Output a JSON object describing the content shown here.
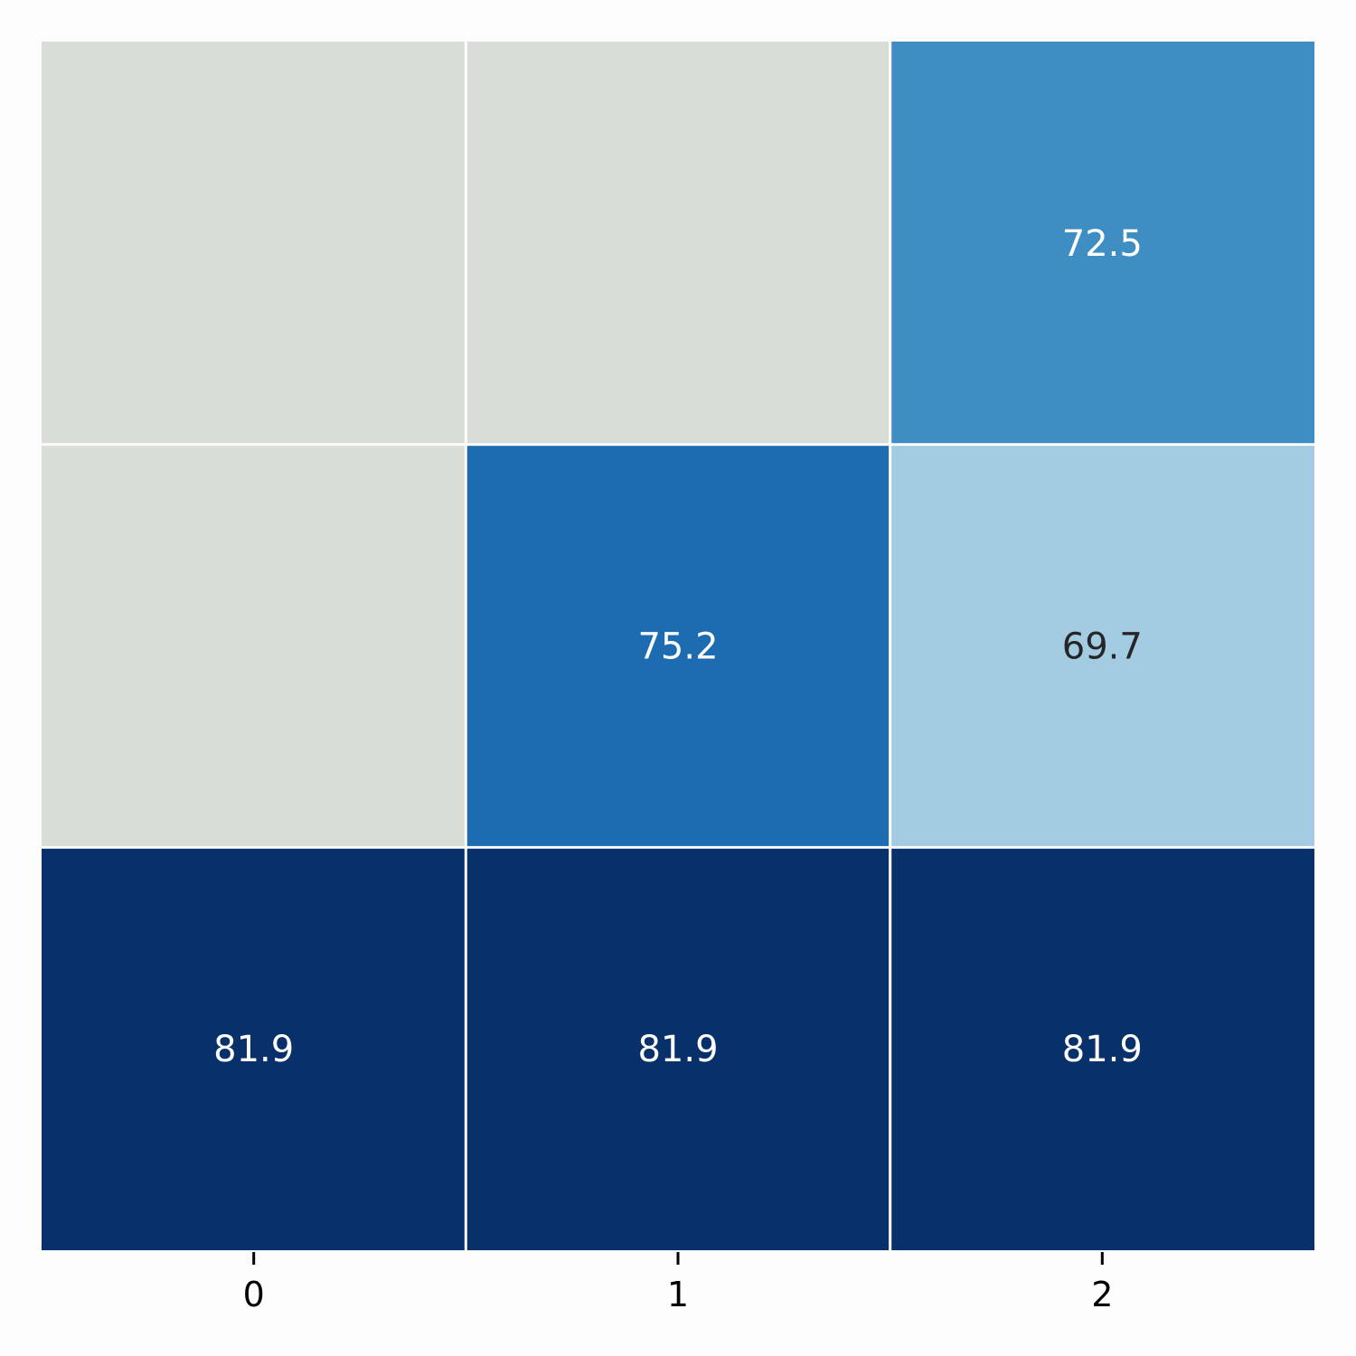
{
  "chart_data": {
    "type": "heatmap",
    "x_tick_labels": [
      "0",
      "1",
      "2"
    ],
    "rows": [
      {
        "cells": [
          {
            "value": null,
            "label": ""
          },
          {
            "value": null,
            "label": ""
          },
          {
            "value": 72.5,
            "label": "72.5"
          }
        ]
      },
      {
        "cells": [
          {
            "value": null,
            "label": ""
          },
          {
            "value": 75.2,
            "label": "75.2"
          },
          {
            "value": 69.7,
            "label": "69.7"
          }
        ]
      },
      {
        "cells": [
          {
            "value": 81.9,
            "label": "81.9"
          },
          {
            "value": 81.9,
            "label": "81.9"
          },
          {
            "value": 81.9,
            "label": "81.9"
          }
        ]
      }
    ],
    "colorscale": "Blues",
    "missing_color": "#d8ddd7",
    "cell_border_color": "#ffffff",
    "y_tick_labels_shown": false,
    "colorbar": false
  }
}
